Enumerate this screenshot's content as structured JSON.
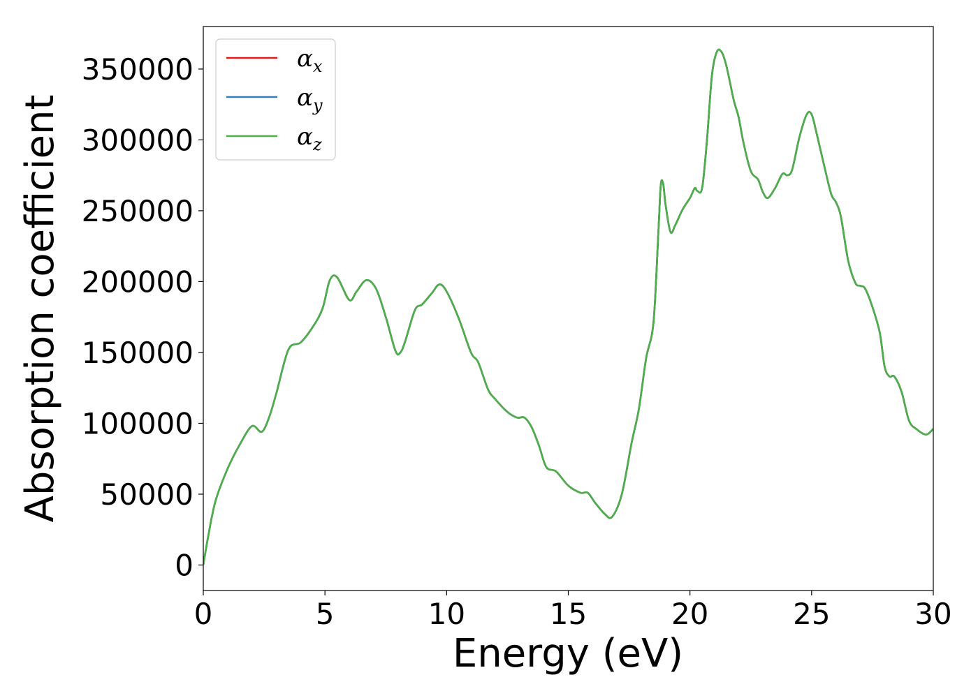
{
  "chart_data": {
    "type": "line",
    "title": "",
    "xlabel": "Energy (eV)",
    "ylabel": "Absorption coefficient",
    "xlim": [
      0,
      30
    ],
    "ylim": [
      -18000,
      380000
    ],
    "xticks": [
      0,
      5,
      10,
      15,
      20,
      25,
      30
    ],
    "yticks": [
      0,
      50000,
      100000,
      150000,
      200000,
      250000,
      300000,
      350000
    ],
    "grid": false,
    "legend_position": "top-left",
    "colors": {
      "alpha_x": "#e41a1c",
      "alpha_y": "#377eb8",
      "alpha_z": "#4daf4a"
    },
    "x": [
      0,
      0.2,
      0.5,
      1.0,
      1.5,
      2.0,
      2.4,
      2.7,
      3.0,
      3.5,
      4.0,
      4.5,
      4.9,
      5.2,
      5.5,
      6.0,
      6.3,
      6.7,
      7.1,
      7.5,
      7.9,
      8.1,
      8.3,
      8.7,
      9.0,
      9.4,
      9.7,
      10.0,
      10.5,
      11.0,
      11.3,
      11.7,
      12.0,
      12.5,
      12.9,
      13.2,
      13.5,
      13.8,
      14.1,
      14.5,
      15.0,
      15.5,
      15.8,
      16.1,
      16.5,
      16.8,
      17.2,
      17.6,
      17.9,
      18.2,
      18.5,
      18.7,
      18.8,
      18.9,
      19.0,
      19.2,
      19.4,
      19.7,
      20.0,
      20.2,
      20.3,
      20.5,
      20.7,
      20.9,
      21.1,
      21.3,
      21.5,
      21.8,
      22.0,
      22.2,
      22.5,
      22.8,
      23.0,
      23.2,
      23.5,
      23.8,
      24.0,
      24.2,
      24.5,
      24.8,
      25.0,
      25.2,
      25.5,
      25.8,
      26.0,
      26.2,
      26.5,
      26.8,
      27.0,
      27.2,
      27.5,
      27.8,
      28.0,
      28.2,
      28.4,
      28.7,
      29.0,
      29.3,
      29.7,
      30.0
    ],
    "series": [
      {
        "name": "α_x",
        "values": [
          0,
          20000,
          45000,
          68000,
          85000,
          98000,
          94000,
          104000,
          121000,
          152000,
          157000,
          168000,
          181000,
          201000,
          203000,
          187000,
          193000,
          201000,
          195000,
          175000,
          151000,
          150000,
          158000,
          180000,
          184000,
          192000,
          198000,
          193000,
          174000,
          150000,
          143000,
          124000,
          117000,
          108000,
          104000,
          104000,
          97000,
          84000,
          69000,
          66000,
          56000,
          51000,
          51000,
          44000,
          36000,
          34000,
          50000,
          86000,
          110000,
          146000,
          171000,
          234000,
          268000,
          269000,
          254000,
          235000,
          240000,
          251000,
          259000,
          266000,
          264000,
          266000,
          300000,
          345000,
          362000,
          362000,
          352000,
          328000,
          316000,
          298000,
          278000,
          272000,
          263000,
          259000,
          266000,
          276000,
          275000,
          279000,
          302000,
          318000,
          318000,
          305000,
          283000,
          262000,
          256000,
          246000,
          215000,
          199000,
          197000,
          195000,
          182000,
          164000,
          140000,
          133000,
          133000,
          122000,
          102000,
          96000,
          92000,
          96000
        ]
      },
      {
        "name": "α_y",
        "values": [
          0,
          20000,
          45000,
          68000,
          85000,
          98000,
          94000,
          104000,
          121000,
          152000,
          157000,
          168000,
          181000,
          201000,
          203000,
          187000,
          193000,
          201000,
          195000,
          175000,
          151000,
          150000,
          158000,
          180000,
          184000,
          192000,
          198000,
          193000,
          174000,
          150000,
          143000,
          124000,
          117000,
          108000,
          104000,
          104000,
          97000,
          84000,
          69000,
          66000,
          56000,
          51000,
          51000,
          44000,
          36000,
          34000,
          50000,
          86000,
          110000,
          146000,
          171000,
          234000,
          268000,
          269000,
          254000,
          235000,
          240000,
          251000,
          259000,
          266000,
          264000,
          266000,
          300000,
          345000,
          362000,
          362000,
          352000,
          328000,
          316000,
          298000,
          278000,
          272000,
          263000,
          259000,
          266000,
          276000,
          275000,
          279000,
          302000,
          318000,
          318000,
          305000,
          283000,
          262000,
          256000,
          246000,
          215000,
          199000,
          197000,
          195000,
          182000,
          164000,
          140000,
          133000,
          133000,
          122000,
          102000,
          96000,
          92000,
          96000
        ]
      },
      {
        "name": "α_z",
        "values": [
          0,
          20000,
          45000,
          68000,
          85000,
          98000,
          94000,
          104000,
          121000,
          152000,
          157000,
          168000,
          181000,
          201000,
          203000,
          187000,
          193000,
          201000,
          195000,
          175000,
          151000,
          150000,
          158000,
          180000,
          184000,
          192000,
          198000,
          193000,
          174000,
          150000,
          143000,
          124000,
          117000,
          108000,
          104000,
          104000,
          97000,
          84000,
          69000,
          66000,
          56000,
          51000,
          51000,
          44000,
          36000,
          34000,
          50000,
          86000,
          110000,
          146000,
          171000,
          234000,
          268000,
          269000,
          254000,
          235000,
          240000,
          251000,
          259000,
          266000,
          264000,
          266000,
          300000,
          345000,
          362000,
          362000,
          352000,
          328000,
          316000,
          298000,
          278000,
          272000,
          263000,
          259000,
          266000,
          276000,
          275000,
          279000,
          302000,
          318000,
          318000,
          305000,
          283000,
          262000,
          256000,
          246000,
          215000,
          199000,
          197000,
          195000,
          182000,
          164000,
          140000,
          133000,
          133000,
          122000,
          102000,
          96000,
          92000,
          96000
        ]
      }
    ],
    "legend": [
      {
        "symbol": "α",
        "sub": "x"
      },
      {
        "symbol": "α",
        "sub": "y"
      },
      {
        "symbol": "α",
        "sub": "z"
      }
    ]
  }
}
